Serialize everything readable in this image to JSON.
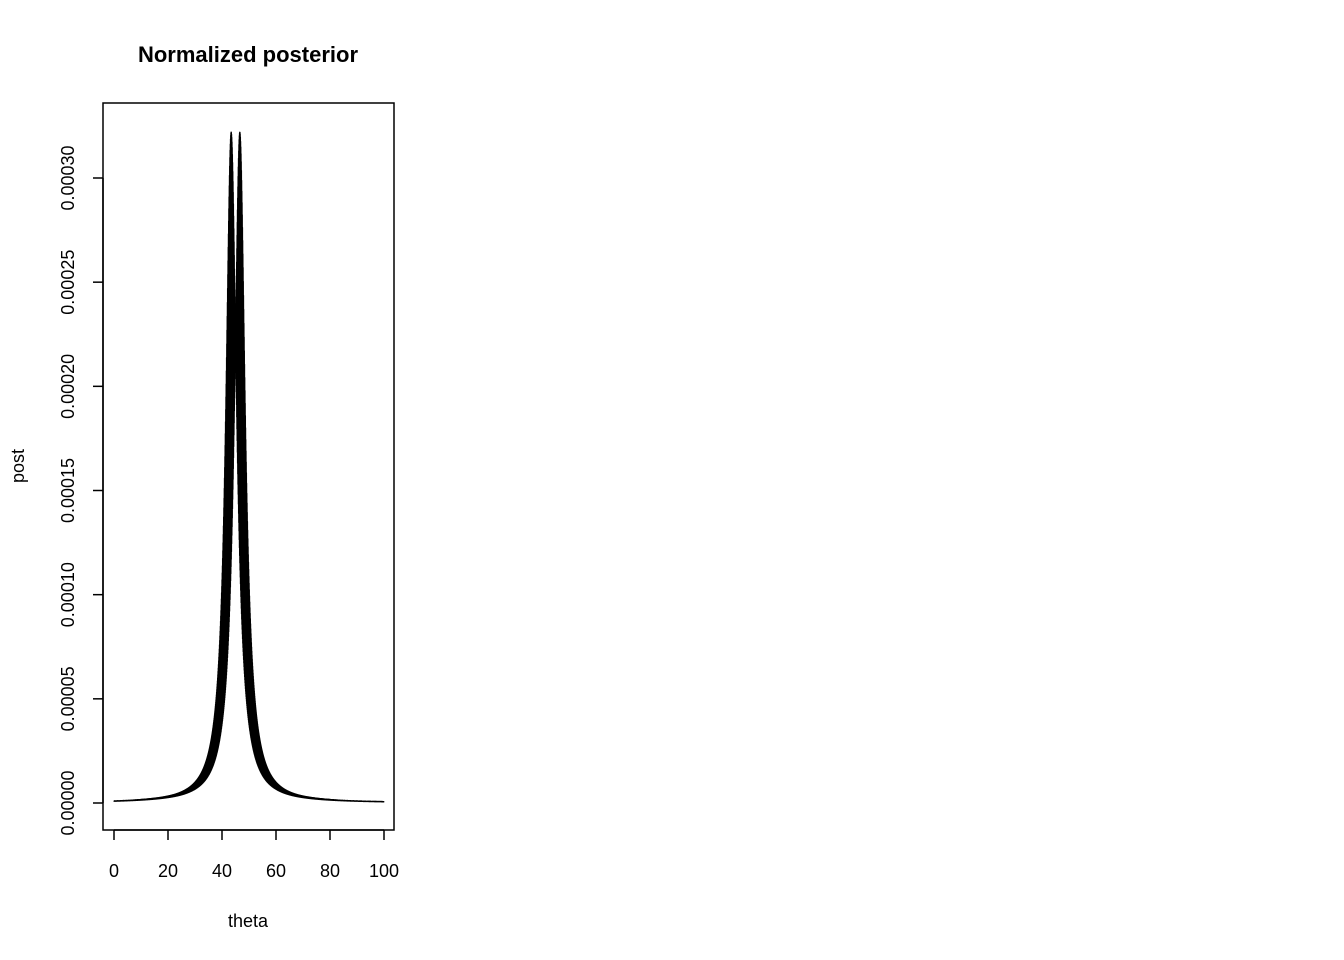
{
  "chart_data": {
    "type": "line",
    "title": "Normalized posterior",
    "xlabel": "theta",
    "ylabel": "post",
    "xlim": [
      0,
      100
    ],
    "ylim": [
      0,
      0.00032
    ],
    "x_ticks": [
      0,
      20,
      40,
      60,
      80,
      100
    ],
    "x_tick_labels": [
      "0",
      "20",
      "40",
      "60",
      "80",
      "100"
    ],
    "y_ticks": [
      0,
      5e-05,
      0.0001,
      0.00015,
      0.0002,
      0.00025,
      0.0003
    ],
    "y_tick_labels": [
      "0.00000",
      "0.00005",
      "0.00010",
      "0.00015",
      "0.00020",
      "0.00025",
      "0.00030"
    ],
    "grid": false,
    "series": [
      {
        "name": "post",
        "x_range": [
          0,
          100
        ],
        "peak_theta": 45,
        "peak_value": 0.000322,
        "color": "#000000"
      }
    ]
  }
}
